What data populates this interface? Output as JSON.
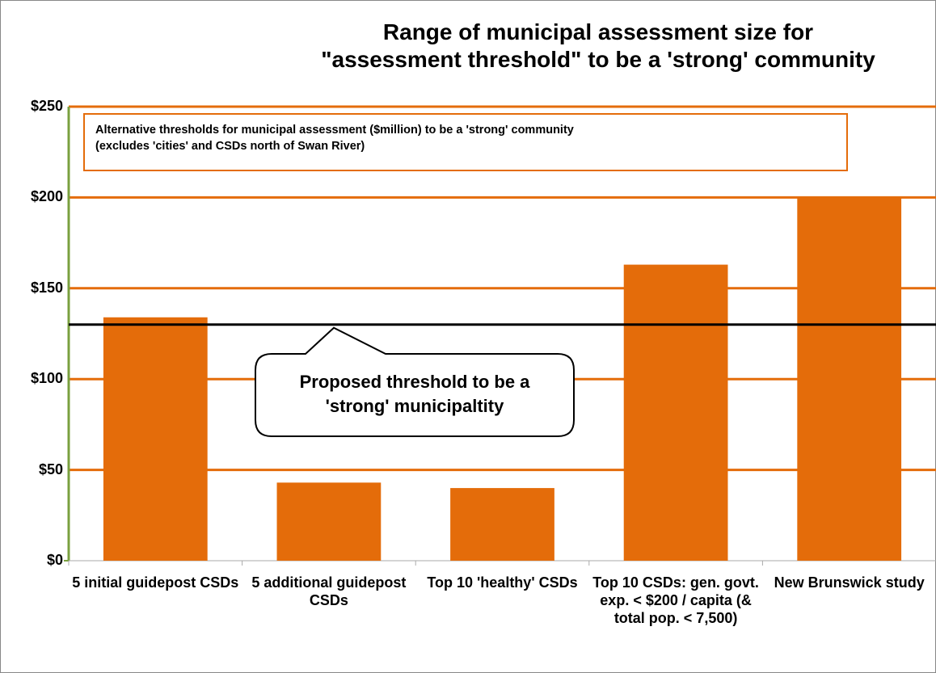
{
  "chart_data": {
    "type": "bar",
    "title": [
      "Range of municipal assessment size for",
      "\"assessment threshold\" to be a 'strong' community"
    ],
    "annotation": [
      "Alternative thresholds for municipal assessment ($million)  to be a 'strong' community",
      "(excludes 'cities' and CSDs north of Swan  River)"
    ],
    "categories": [
      "5 initial guidepost CSDs",
      "5 additional guidepost CSDs",
      "Top 10 'healthy' CSDs",
      "Top 10 CSDs: gen. govt. exp. < $200 / capita (& total pop. < 7,500)",
      "New Brunswick study"
    ],
    "values": [
      134,
      43,
      40,
      163,
      200
    ],
    "color": "#e46c0a",
    "threshold": {
      "value": 130,
      "label": [
        "Proposed threshold to be a",
        "'strong' municipaltity"
      ]
    },
    "ylim": [
      0,
      250
    ],
    "yticks": [
      {
        "value": 0,
        "label": "$0"
      },
      {
        "value": 50,
        "label": "$50"
      },
      {
        "value": 100,
        "label": "$100"
      },
      {
        "value": 150,
        "label": "$150"
      },
      {
        "value": 200,
        "label": "$200"
      },
      {
        "value": 250,
        "label": "$250"
      }
    ],
    "grid": true
  }
}
